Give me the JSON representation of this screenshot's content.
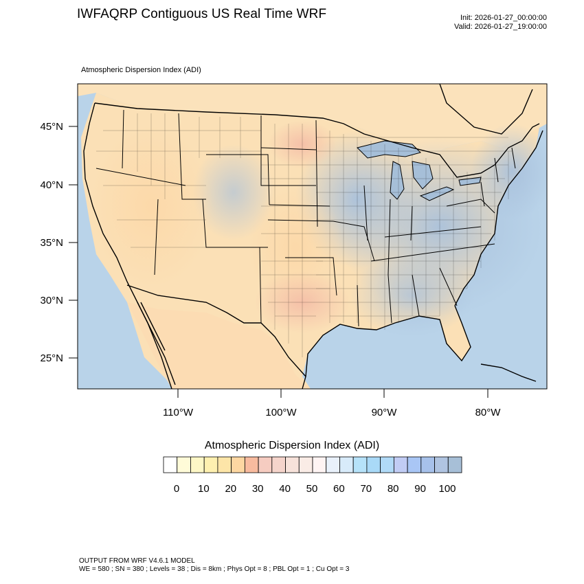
{
  "header": {
    "title": "IWFAQRP Contiguous US Real Time WRF",
    "init": "Init: 2026-01-27_00:00:00",
    "valid": "Valid: 2026-01-27_19:00:00"
  },
  "map": {
    "field_label": "Atmospheric Dispersion Index   (ADI)",
    "lat_ticks": [
      {
        "label": "45°N",
        "lat": 45
      },
      {
        "label": "40°N",
        "lat": 40
      },
      {
        "label": "35°N",
        "lat": 35
      },
      {
        "label": "30°N",
        "lat": 30
      },
      {
        "label": "25°N",
        "lat": 25
      }
    ],
    "lon_ticks": [
      {
        "label": "110°W",
        "lon": -110
      },
      {
        "label": "100°W",
        "lon": -100
      },
      {
        "label": "90°W",
        "lon": -90
      },
      {
        "label": "80°W",
        "lon": -80
      }
    ],
    "colors": {
      "ocean": "#b5d0e8",
      "land_warm": "#fbe1b9",
      "land_cool": "#b7cbe2",
      "boundary": "#000000"
    }
  },
  "colorbar": {
    "title": "Atmospheric Dispersion Index  (ADI)",
    "labels": [
      "0",
      "10",
      "20",
      "30",
      "40",
      "50",
      "60",
      "70",
      "80",
      "90",
      "100"
    ],
    "colors": [
      "#ffffff",
      "#fffbd8",
      "#fdf7c6",
      "#fef0b0",
      "#fde5a8",
      "#fdd7a2",
      "#f8bb9f",
      "#f6ccc1",
      "#f5d4cb",
      "#f7e2da",
      "#faece6",
      "#fff4f3",
      "#e9f1fb",
      "#d8ebfa",
      "#b6e2f9",
      "#a9d9f7",
      "#b1daf7",
      "#c1ccf4",
      "#a9c6f5",
      "#a7c1ea",
      "#b0c4e1",
      "#a7bfd7"
    ]
  },
  "footer": {
    "line1": "OUTPUT FROM WRF V4.6.1 MODEL",
    "line2": "WE = 580 ; SN = 380 ; Levels = 38 ; Dis = 8km ; Phys Opt = 8 ; PBL Opt = 1 ; Cu Opt = 3"
  }
}
